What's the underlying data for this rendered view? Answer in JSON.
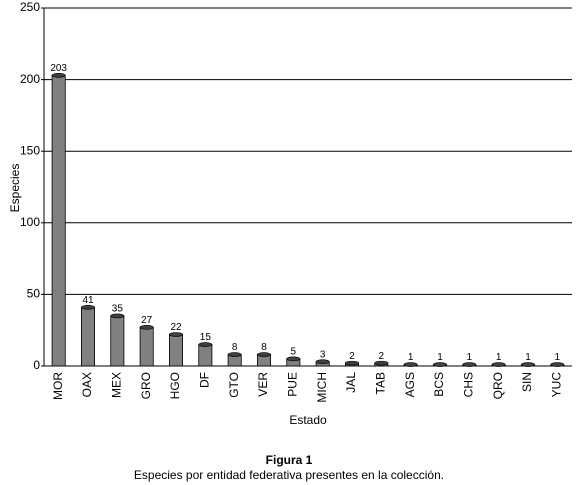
{
  "chart_data": {
    "type": "bar",
    "caption_title": "Figura 1",
    "caption": "Especies por entidad federativa presentes en la colección.",
    "x_label": "Estado",
    "y_label": "Especies",
    "categories": [
      "MOR",
      "OAX",
      "MEX",
      "GRO",
      "HGO",
      "DF",
      "GTO",
      "VER",
      "PUE",
      "MICH",
      "JAL",
      "TAB",
      "AGS",
      "BCS",
      "CHS",
      "QRO",
      "SIN",
      "YUC"
    ],
    "values": [
      203,
      41,
      35,
      27,
      22,
      15,
      8,
      8,
      5,
      3,
      2,
      2,
      1,
      1,
      1,
      1,
      1,
      1
    ],
    "color": "#808080",
    "ylim": [
      0,
      250
    ],
    "yticks": [
      0,
      50,
      100,
      150,
      200,
      250
    ],
    "grid": true
  }
}
